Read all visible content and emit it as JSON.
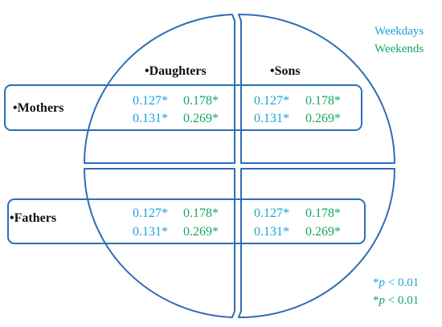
{
  "colors": {
    "outline": "#2f6db5",
    "weekdays": "#1aa3d9",
    "weekends": "#12a860",
    "text": "#111111"
  },
  "bullet": "•",
  "legend": {
    "weekdays": "Weekdays",
    "weekends": "Weekends"
  },
  "columns": {
    "daughters": "Daughters",
    "sons": "Sons"
  },
  "rows": {
    "mothers": "Mothers",
    "fathers": "Fathers"
  },
  "cells": {
    "mothers_daughters": {
      "weekday_1": "0.127*",
      "weekend_1": "0.178*",
      "weekday_2": "0.131*",
      "weekend_2": "0.269*"
    },
    "mothers_sons": {
      "weekday_1": "0.127*",
      "weekend_1": "0.178*",
      "weekday_2": "0.131*",
      "weekend_2": "0.269*"
    },
    "fathers_daughters": {
      "weekday_1": "0.127*",
      "weekend_1": "0.178*",
      "weekday_2": "0.131*",
      "weekend_2": "0.269*"
    },
    "fathers_sons": {
      "weekday_1": "0.127*",
      "weekend_1": "0.178*",
      "weekday_2": "0.131*",
      "weekend_2": "0.269*"
    }
  },
  "significance": {
    "star": "*",
    "p": "p",
    "rest": " < 0.01"
  }
}
